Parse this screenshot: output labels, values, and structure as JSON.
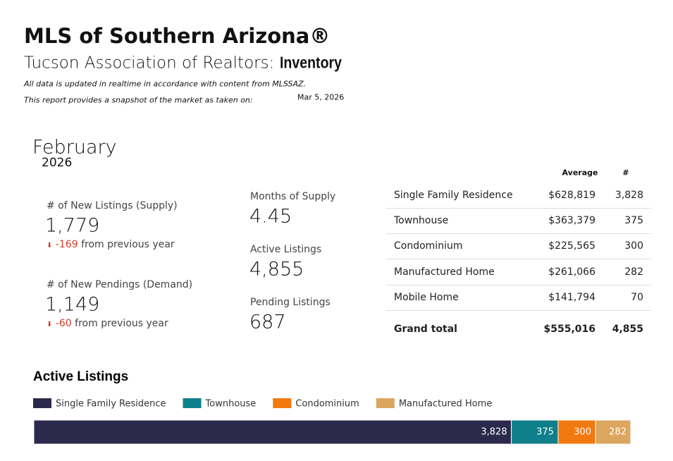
{
  "header": {
    "title": "MLS of Southern Arizona®",
    "subtitle": "Tucson Association of Realtors:",
    "subtitle_emphasis": "Inventory",
    "note": "All data is updated in realtime in accordance with content from MLSSAZ.",
    "snapshot_note": "This report provides a snapshot of the market as taken on:",
    "snapshot_date": "Mar 5, 2026"
  },
  "period": {
    "month": "February",
    "year": "2026"
  },
  "kpis": [
    {
      "label": "# of New Listings (Supply)",
      "value": "1,779",
      "change": "-169",
      "change_text": "from previous year"
    },
    {
      "label": "# of New Pendings (Demand)",
      "value": "1,149",
      "change": "-60",
      "change_text": "from previous year"
    }
  ],
  "stats": [
    {
      "label": "Months of Supply",
      "value": "4.45"
    },
    {
      "label": "Active Listings",
      "value": "4,855"
    },
    {
      "label": "Pending Listings",
      "value": "687"
    }
  ],
  "table": {
    "header": [
      "Average",
      "#"
    ],
    "rows": [
      [
        "Single Family Residence",
        "$628,819",
        "3,828"
      ],
      [
        "Townhouse",
        "$363,379",
        "375"
      ],
      [
        "Condominium",
        "$225,565",
        "300"
      ],
      [
        "Manufactured Home",
        "$261,066",
        "282"
      ],
      [
        "Mobile Home",
        "$141,794",
        "70"
      ]
    ],
    "total": [
      "Grand total",
      "$555,016",
      "4,855"
    ]
  },
  "chart_data": {
    "type": "stacked-bar",
    "title": "Active Listings",
    "orientation": "horizontal",
    "xlim": [
      0,
      4785
    ],
    "series": [
      {
        "name": "Single Family Residence",
        "color": "#2b2a4c",
        "values": [
          3828
        ],
        "value_labels": [
          "3,828"
        ]
      },
      {
        "name": "Townhouse",
        "color": "#0f7f8b",
        "values": [
          375
        ]
      },
      {
        "name": "Condominium",
        "color": "#f2790f",
        "values": [
          300
        ]
      },
      {
        "name": "Manufactured Home",
        "color": "#dba65e",
        "values": [
          282
        ]
      }
    ]
  }
}
